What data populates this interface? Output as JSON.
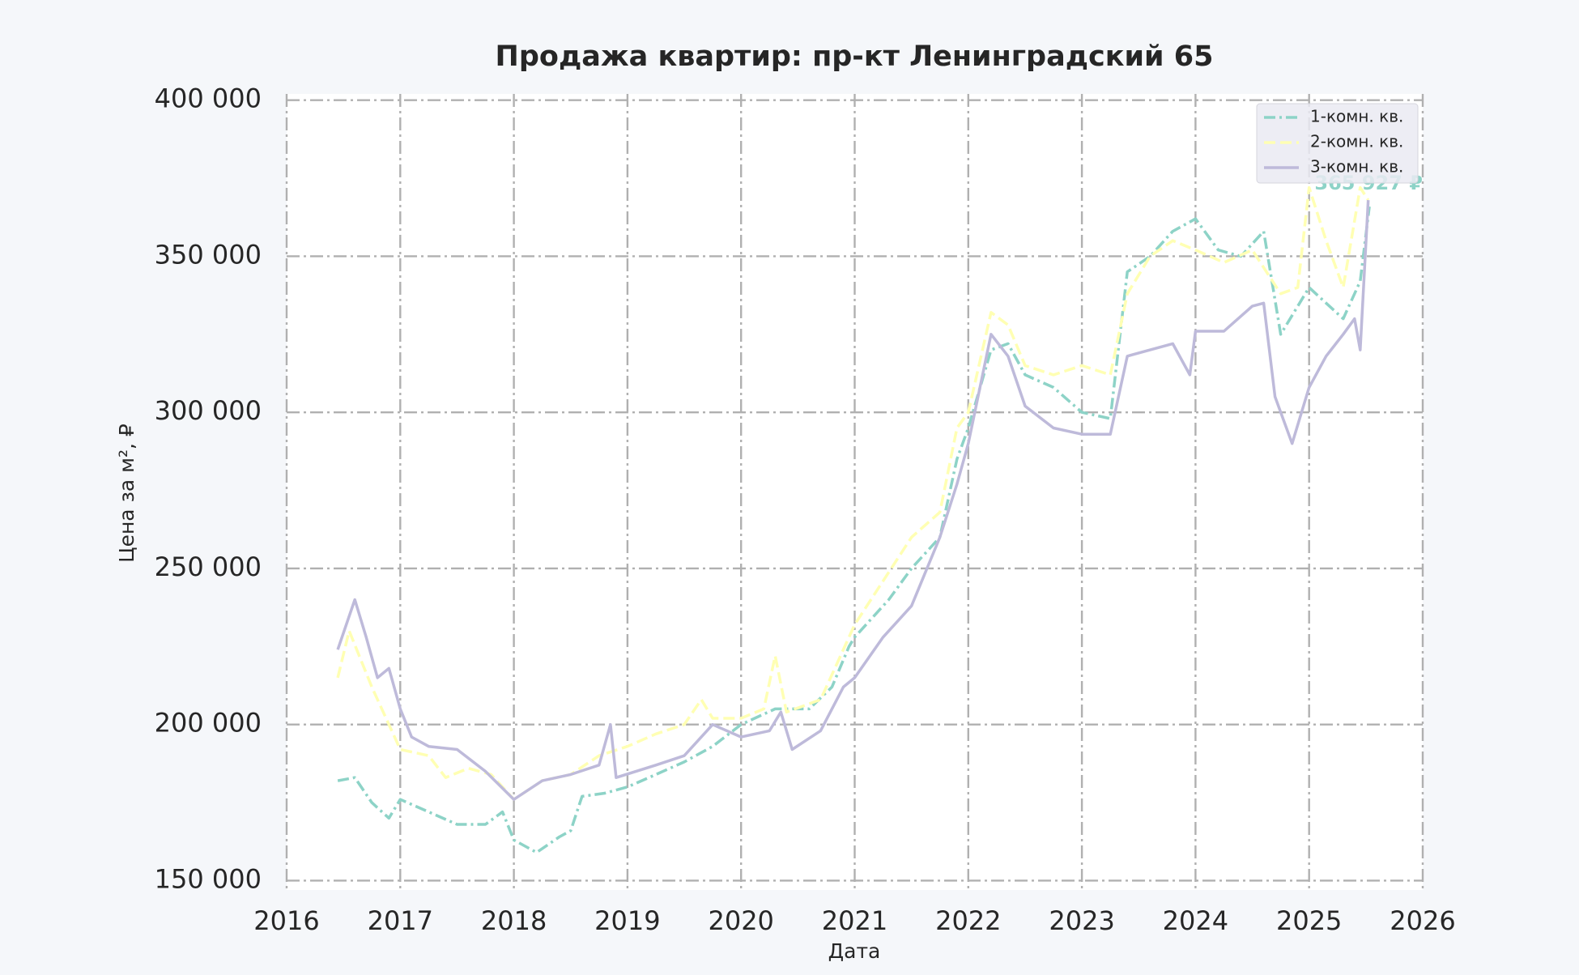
{
  "chart_data": {
    "type": "line",
    "title": "Продажа квартир: пр-кт Ленинградский 65",
    "x_label": "Дата",
    "y_label": "Цена за м², ₽",
    "xlim": [
      2016,
      2026
    ],
    "xticks": [
      2016,
      2017,
      2018,
      2019,
      2020,
      2021,
      2022,
      2023,
      2024,
      2025,
      2026
    ],
    "ylim": [
      147000,
      402000
    ],
    "yticks": [
      {
        "value": 150000,
        "label": "150 000"
      },
      {
        "value": 200000,
        "label": "200 000"
      },
      {
        "value": 250000,
        "label": "250 000"
      },
      {
        "value": 300000,
        "label": "300 000"
      },
      {
        "value": 350000,
        "label": "350 000"
      },
      {
        "value": 400000,
        "label": "400 000"
      }
    ],
    "grid": true,
    "legend": "upper right",
    "annotation": {
      "text": "365 927 ₽",
      "color": "#8dd3c7"
    },
    "series": [
      {
        "name": "1-комн. кв.",
        "color": "#8dd3c7",
        "dash": "dashdot",
        "x": [
          2016.45,
          2016.6,
          2016.75,
          2016.9,
          2017.0,
          2017.25,
          2017.5,
          2017.75,
          2017.9,
          2018.0,
          2018.2,
          2018.4,
          2018.5,
          2018.6,
          2018.8,
          2019.0,
          2019.25,
          2019.5,
          2019.75,
          2020.0,
          2020.3,
          2020.6,
          2020.8,
          2020.95,
          2021.0,
          2021.3,
          2021.5,
          2021.75,
          2021.9,
          2022.0,
          2022.2,
          2022.35,
          2022.5,
          2022.75,
          2023.0,
          2023.25,
          2023.4,
          2023.6,
          2023.8,
          2024.0,
          2024.2,
          2024.4,
          2024.6,
          2024.75,
          2025.0,
          2025.15,
          2025.3,
          2025.45,
          2025.53
        ],
        "values": [
          182000,
          183000,
          175000,
          170000,
          176000,
          172000,
          168000,
          168000,
          172000,
          163000,
          159000,
          164000,
          166000,
          177000,
          178000,
          180000,
          184000,
          188000,
          193000,
          200000,
          205000,
          205000,
          212000,
          225000,
          228000,
          240000,
          250000,
          260000,
          285000,
          295000,
          320000,
          322000,
          312000,
          308000,
          300000,
          298000,
          345000,
          350000,
          358000,
          362000,
          352000,
          350000,
          358000,
          325000,
          340000,
          335000,
          330000,
          342000,
          365927
        ]
      },
      {
        "name": "2-комн. кв.",
        "color": "#ffffb3",
        "dash": "dashed",
        "x": [
          2016.45,
          2016.55,
          2016.75,
          2016.9,
          2017.0,
          2017.25,
          2017.4,
          2017.6,
          2017.8,
          2018.0,
          2018.25,
          2018.5,
          2018.75,
          2019.0,
          2019.25,
          2019.5,
          2019.65,
          2019.75,
          2020.0,
          2020.2,
          2020.3,
          2020.4,
          2020.7,
          2020.85,
          2021.0,
          2021.25,
          2021.5,
          2021.75,
          2021.9,
          2022.0,
          2022.2,
          2022.35,
          2022.5,
          2022.75,
          2023.0,
          2023.25,
          2023.4,
          2023.6,
          2023.8,
          2024.0,
          2024.25,
          2024.5,
          2024.75,
          2024.9,
          2025.0,
          2025.15,
          2025.3,
          2025.45,
          2025.52
        ],
        "values": [
          215000,
          230000,
          212000,
          200000,
          192000,
          190000,
          183000,
          186000,
          184000,
          176000,
          182000,
          184000,
          190000,
          193000,
          197000,
          200000,
          208000,
          202000,
          202000,
          205000,
          222000,
          204000,
          208000,
          220000,
          232000,
          246000,
          260000,
          268000,
          295000,
          300000,
          332000,
          328000,
          315000,
          312000,
          315000,
          312000,
          338000,
          350000,
          355000,
          352000,
          348000,
          352000,
          338000,
          340000,
          372000,
          355000,
          340000,
          372000,
          368000
        ]
      },
      {
        "name": "3-комн. кв.",
        "color": "#bebada",
        "dash": "solid",
        "x": [
          2016.45,
          2016.6,
          2016.7,
          2016.8,
          2016.9,
          2017.0,
          2017.1,
          2017.25,
          2017.5,
          2017.75,
          2018.0,
          2018.25,
          2018.5,
          2018.75,
          2018.85,
          2018.9,
          2019.25,
          2019.5,
          2019.75,
          2020.0,
          2020.25,
          2020.35,
          2020.45,
          2020.7,
          2020.9,
          2021.0,
          2021.25,
          2021.5,
          2021.75,
          2021.9,
          2022.0,
          2022.2,
          2022.35,
          2022.5,
          2022.75,
          2023.0,
          2023.25,
          2023.4,
          2023.6,
          2023.8,
          2023.95,
          2024.0,
          2024.25,
          2024.5,
          2024.6,
          2024.7,
          2024.85,
          2025.0,
          2025.15,
          2025.3,
          2025.4,
          2025.45,
          2025.52
        ],
        "values": [
          224000,
          240000,
          228000,
          215000,
          218000,
          205000,
          196000,
          193000,
          192000,
          185000,
          176000,
          182000,
          184000,
          187000,
          200000,
          183000,
          187000,
          190000,
          200000,
          196000,
          198000,
          204000,
          192000,
          198000,
          212000,
          215000,
          228000,
          238000,
          260000,
          277000,
          290000,
          325000,
          318000,
          302000,
          295000,
          293000,
          293000,
          318000,
          320000,
          322000,
          312000,
          326000,
          326000,
          334000,
          335000,
          305000,
          290000,
          308000,
          318000,
          325000,
          330000,
          320000,
          368000
        ]
      }
    ]
  }
}
